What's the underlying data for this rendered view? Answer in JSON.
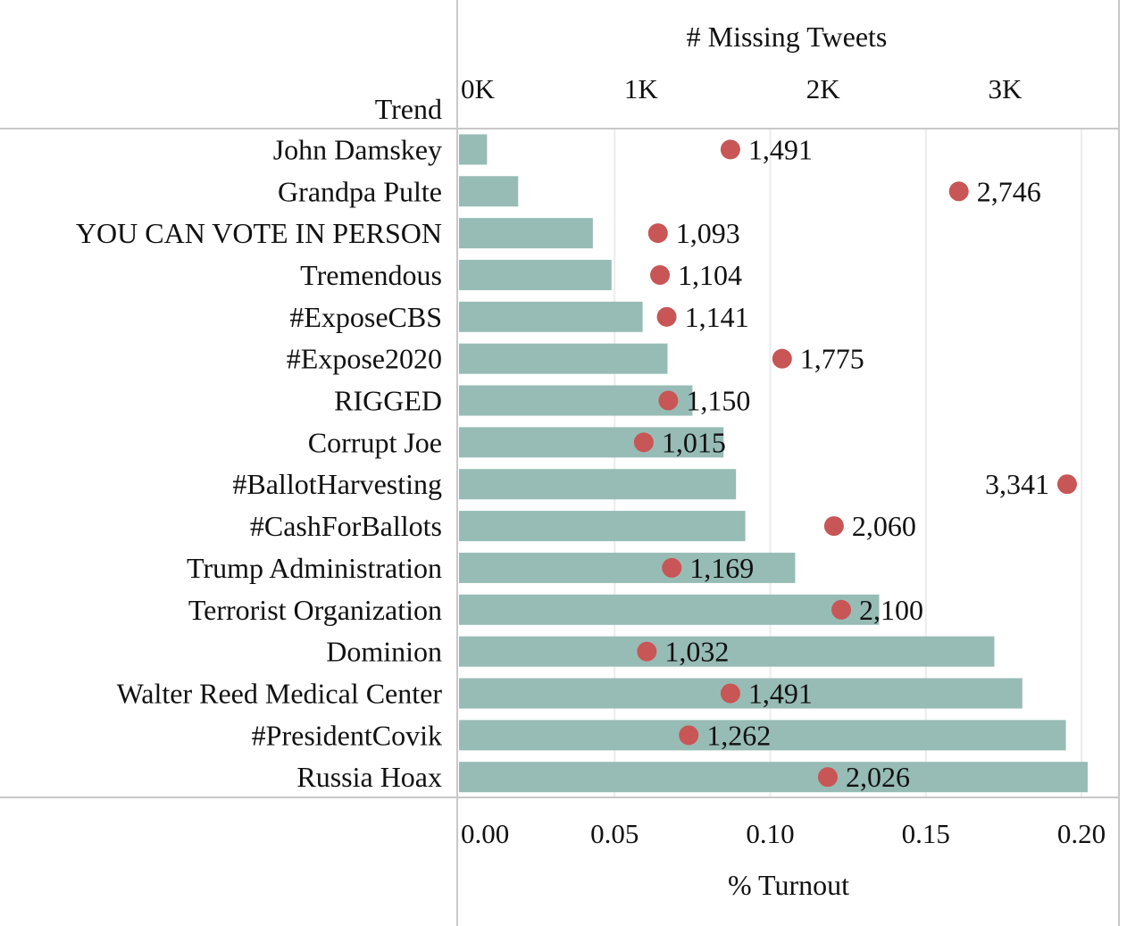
{
  "chart_data": {
    "type": "bar",
    "row_header": "Trend",
    "categories": [
      "John Damskey",
      "Grandpa Pulte",
      "YOU CAN VOTE IN PERSON",
      "Tremendous",
      "#ExposeCBS",
      "#Expose2020",
      "RIGGED",
      "Corrupt Joe",
      "#BallotHarvesting",
      "#CashForBallots",
      "Trump Administration",
      "Terrorist Organization",
      "Dominion",
      "Walter Reed Medical Center",
      "#PresidentCovik",
      "Russia Hoax"
    ],
    "series": [
      {
        "name": "% Turnout",
        "mark": "bar",
        "color": "#97bcb5",
        "values": [
          0.009,
          0.019,
          0.043,
          0.049,
          0.059,
          0.067,
          0.075,
          0.085,
          0.089,
          0.092,
          0.108,
          0.135,
          0.172,
          0.181,
          0.195,
          0.202
        ]
      },
      {
        "name": "# Missing Tweets",
        "mark": "dot",
        "color": "#c85656",
        "values": [
          1491,
          2746,
          1093,
          1104,
          1141,
          1775,
          1150,
          1015,
          3341,
          2060,
          1169,
          2100,
          1032,
          1491,
          1262,
          2026
        ],
        "labels": [
          "1,491",
          "2,746",
          "1,093",
          "1,104",
          "1,141",
          "1,775",
          "1,150",
          "1,015",
          "3,341",
          "2,060",
          "1,169",
          "2,100",
          "1,032",
          "1,491",
          "1,262",
          "2,026"
        ]
      }
    ],
    "x_bottom": {
      "title": "% Turnout",
      "range": [
        0,
        0.2
      ],
      "ticks": [
        0,
        0.05,
        0.1,
        0.15,
        0.2
      ],
      "tick_labels": [
        "0.00",
        "0.05",
        "0.10",
        "0.15",
        "0.20"
      ]
    },
    "x_top": {
      "title": "# Missing Tweets",
      "range": [
        0,
        3400
      ],
      "ticks": [
        0,
        1000,
        2000,
        3000
      ],
      "tick_labels": [
        "0K",
        "1K",
        "2K",
        "3K"
      ]
    },
    "grid": true
  }
}
